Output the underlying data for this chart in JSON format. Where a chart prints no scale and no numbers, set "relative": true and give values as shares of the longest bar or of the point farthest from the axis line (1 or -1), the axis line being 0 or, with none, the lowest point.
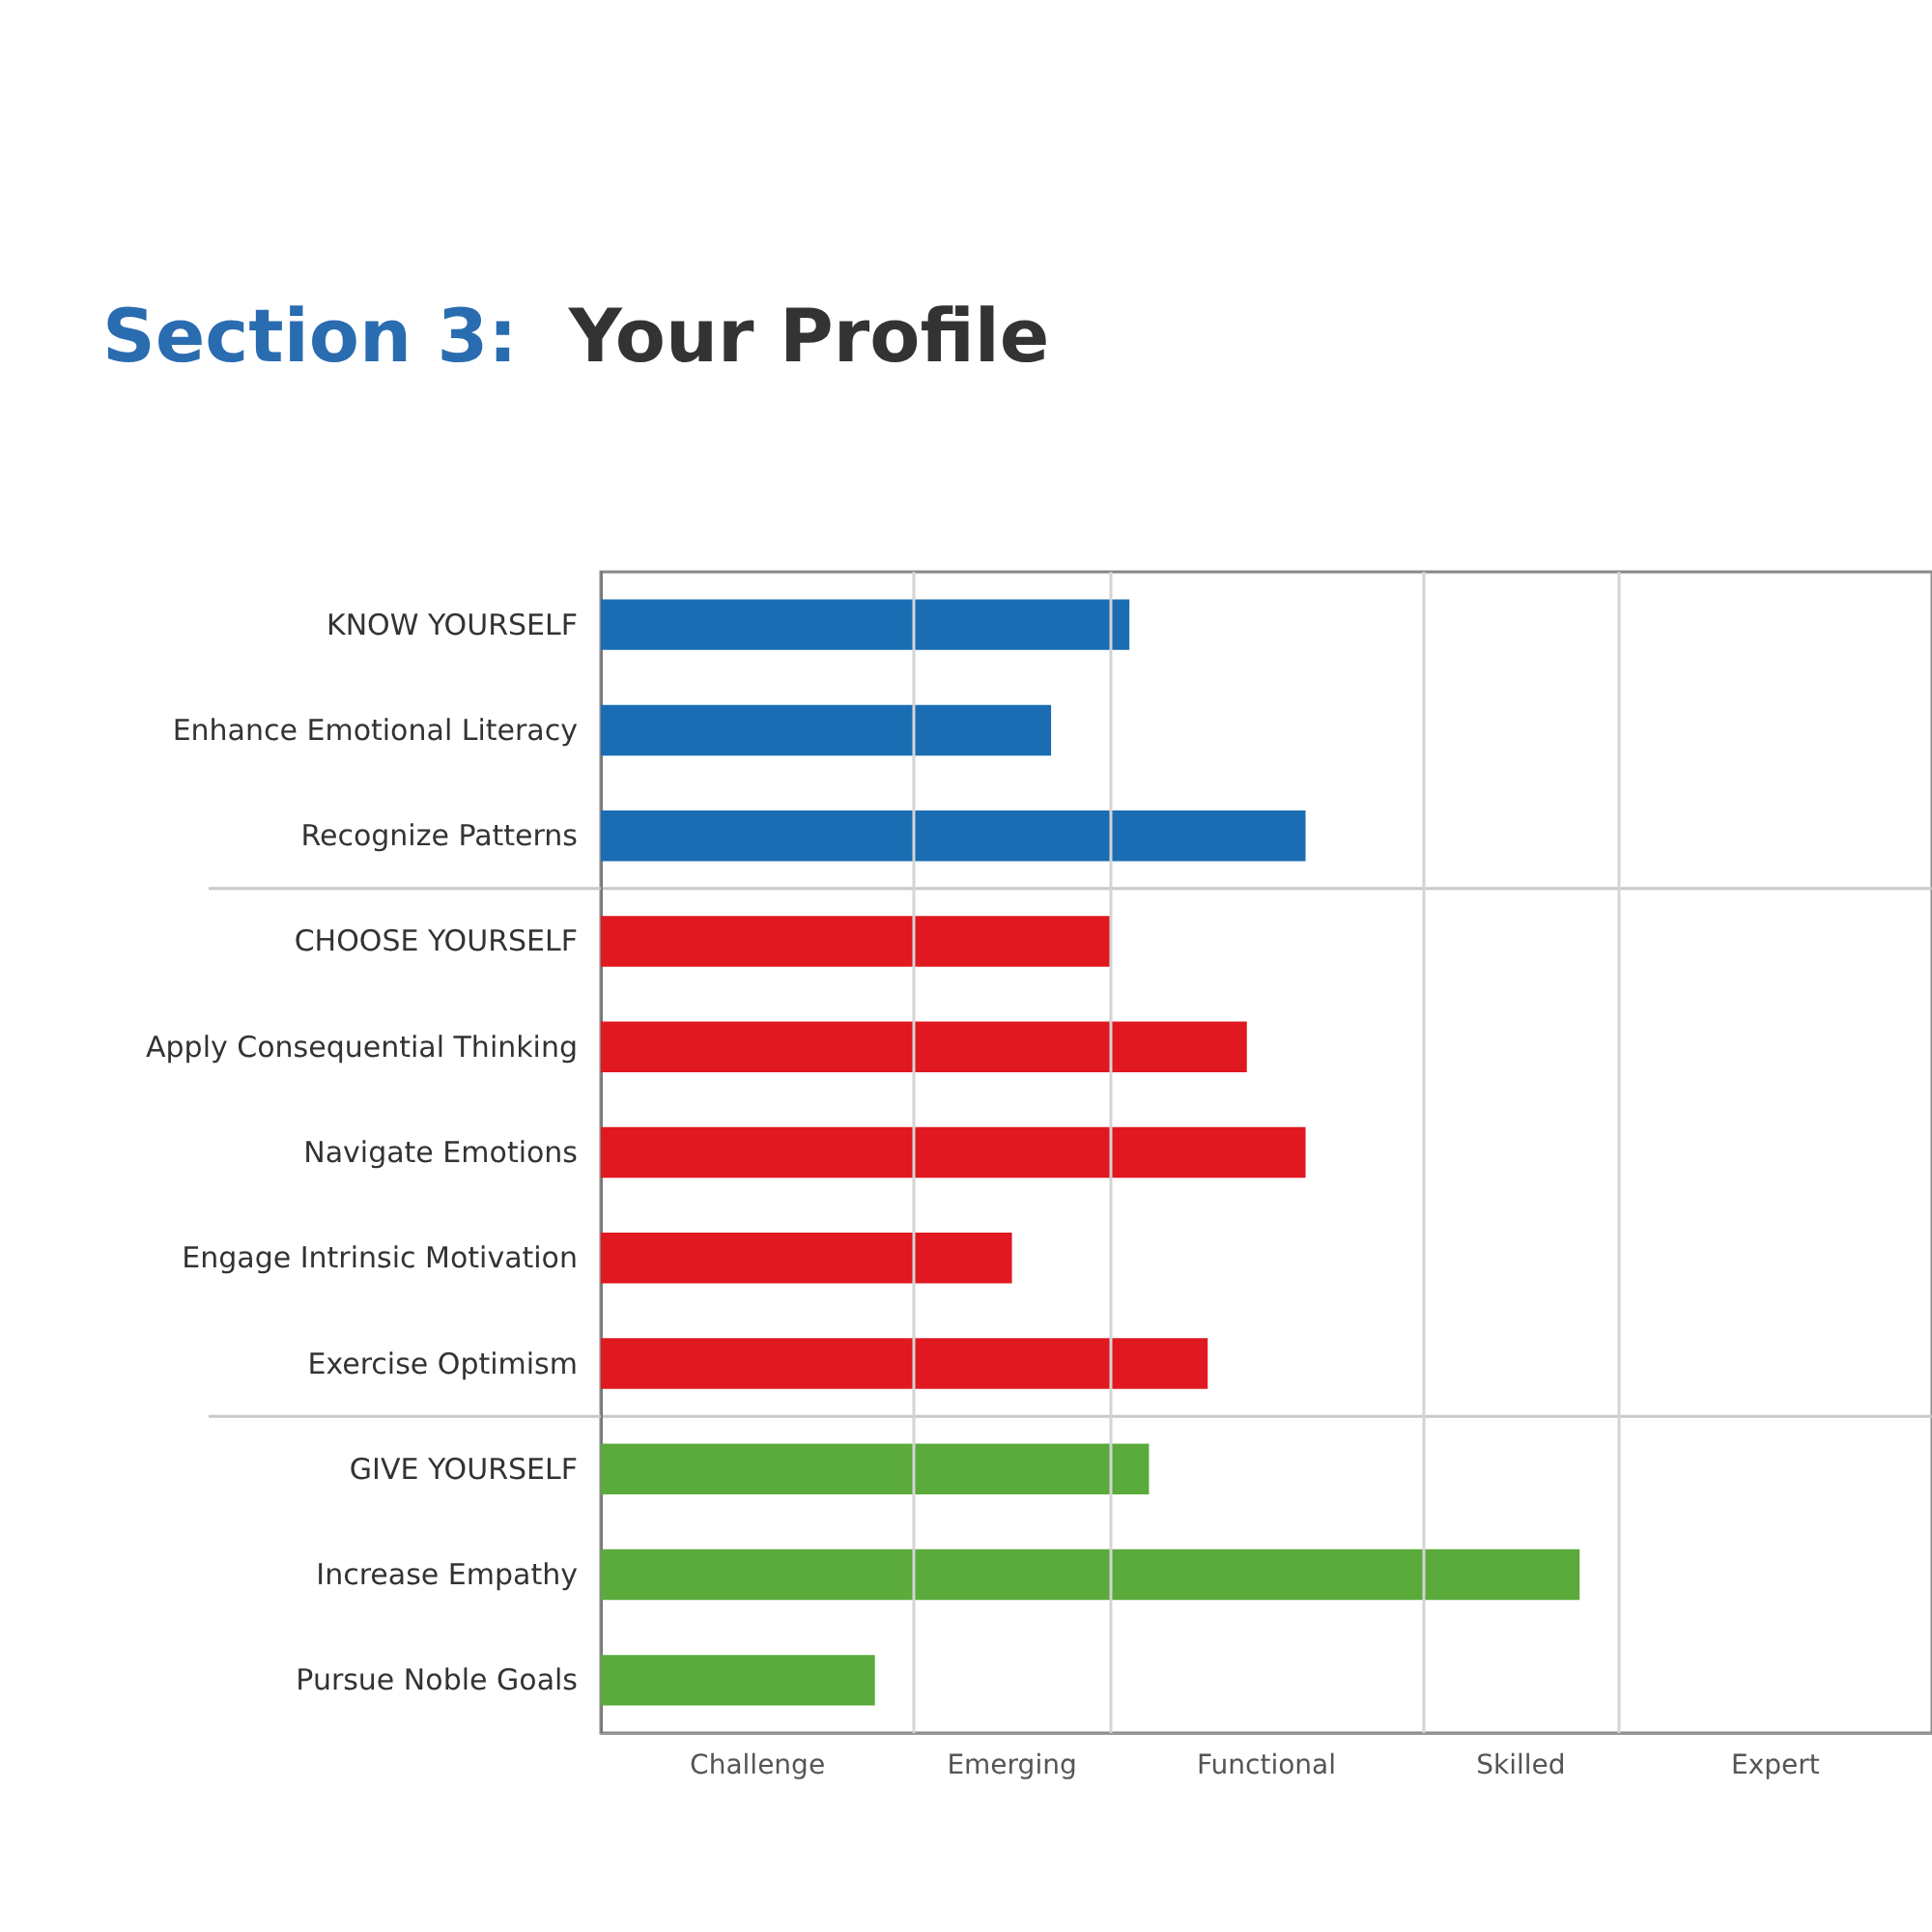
{
  "chart_data": {
    "type": "bar",
    "orientation": "horizontal",
    "relative": true,
    "title": "Section 3:  Your Profile",
    "categories": [
      "KNOW YOURSELF",
      "Enhance Emotional Literacy",
      "Recognize Patterns",
      "CHOOSE YOURSELF",
      "Apply Consequential Thinking",
      "Navigate Emotions",
      "Engage Intrinsic Motivation",
      "Exercise Optimism",
      "GIVE YOURSELF",
      "Increase Empathy",
      "Pursue Noble Goals"
    ],
    "values": [
      0.54,
      0.46,
      0.72,
      0.52,
      0.66,
      0.72,
      0.42,
      0.62,
      0.56,
      1,
      0.28
    ],
    "colors": [
      "#1a6db3",
      "#1a6db3",
      "#1a6db3",
      "#e0181f",
      "#e0181f",
      "#e0181f",
      "#e0181f",
      "#e0181f",
      "#5aaa3c",
      "#5aaa3c",
      "#5aaa3c"
    ],
    "ref_lines": [
      {
        "axis": "x",
        "value": 0.32,
        "color": "#d4d4d4"
      },
      {
        "axis": "x",
        "value": 0.52,
        "color": "#d4d4d4"
      },
      {
        "axis": "x",
        "value": 0.84,
        "color": "#d4d4d4"
      },
      {
        "axis": "x",
        "value": 1.04,
        "color": "#d4d4d4"
      }
    ],
    "annotations": [
      "Challenge",
      "Emerging",
      "Functional",
      "Skilled",
      "Expert"
    ],
    "grid": false
  }
}
